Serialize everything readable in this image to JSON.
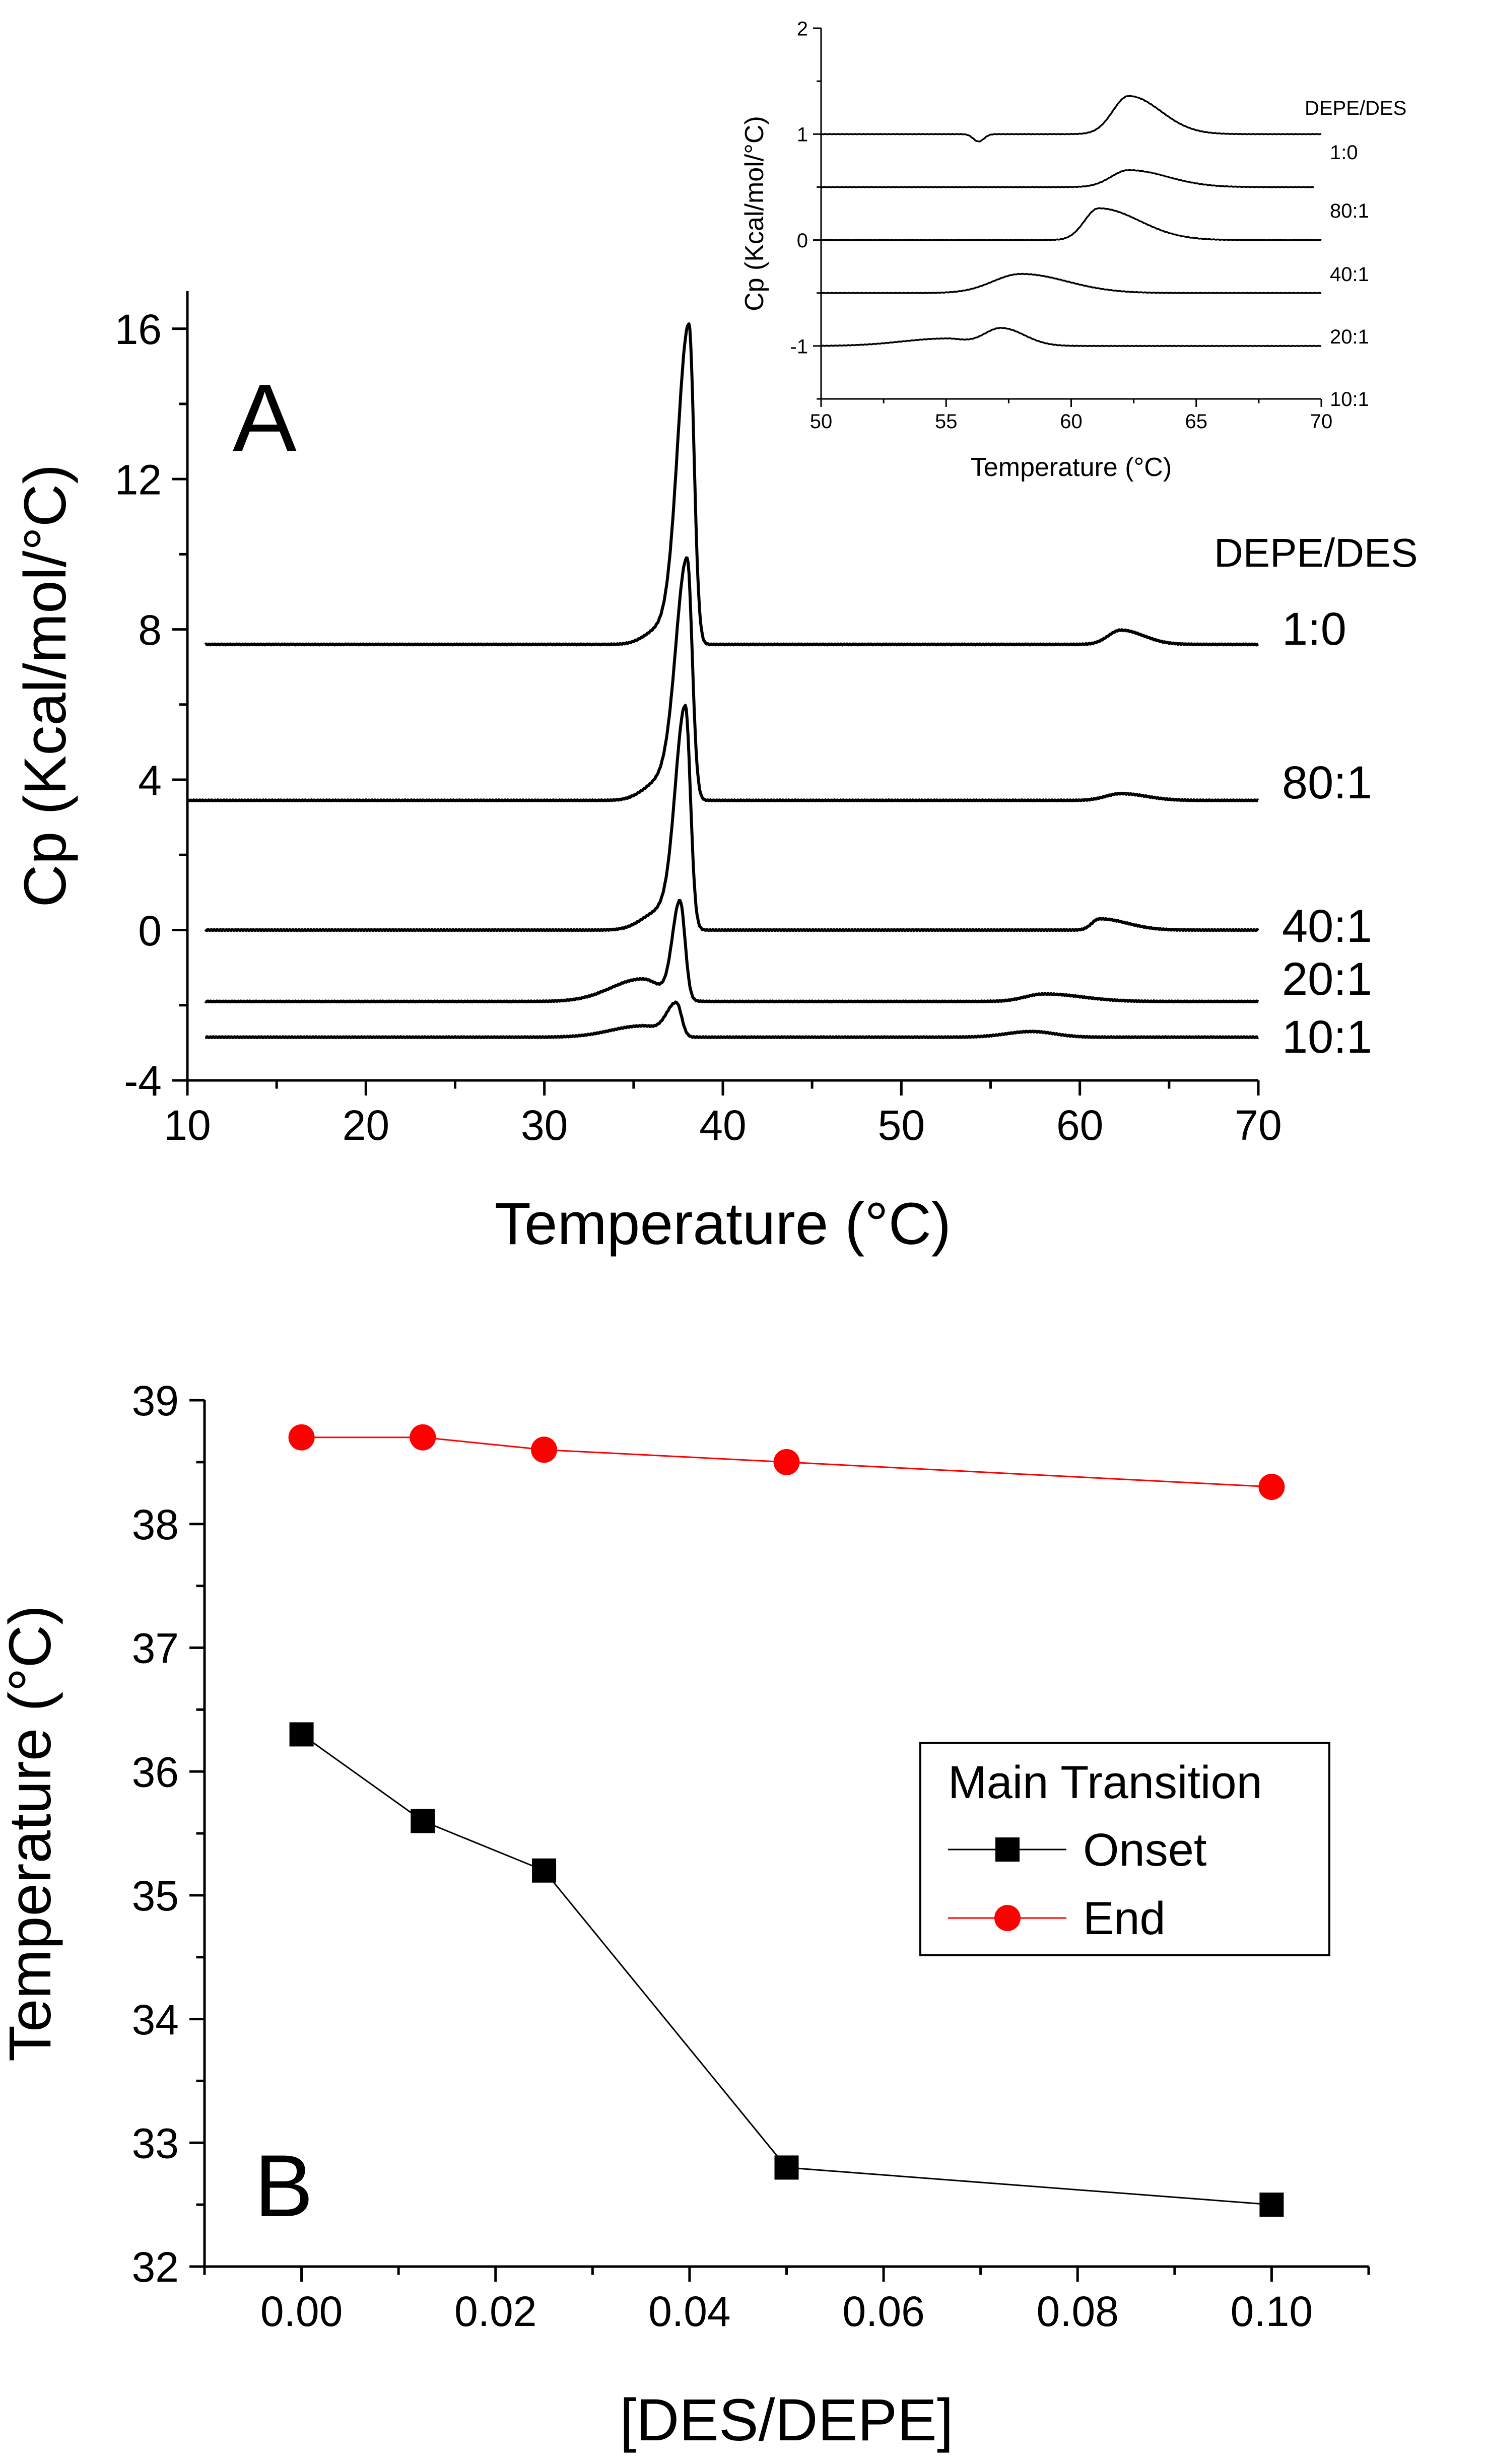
{
  "chart_data": [
    {
      "type": "line",
      "panel_label": "A",
      "xlabel": "Temperature (°C)",
      "ylabel": "Cp (Kcal/mol/°C)",
      "xlim": [
        10,
        70
      ],
      "ylim": [
        -4,
        17
      ],
      "xticks": [
        10,
        20,
        30,
        40,
        50,
        60,
        70
      ],
      "yticks": [
        -4,
        0,
        4,
        8,
        12,
        16
      ],
      "legend_title": "DEPE/DES",
      "series": [
        {
          "name": "1:0",
          "baseline": 7.6,
          "x_range": [
            11,
            70
          ],
          "peaks": [
            {
              "center": 38.1,
              "height": 8.5,
              "wl": 0.9,
              "wr": 0.4
            },
            {
              "center": 36.5,
              "height": 0.4,
              "wl": 1.2,
              "wr": 1.0
            },
            {
              "center": 62.3,
              "height": 0.38,
              "wl": 1.0,
              "wr": 1.8
            }
          ]
        },
        {
          "name": "80:1",
          "baseline": 3.45,
          "x_range": [
            10,
            70
          ],
          "peaks": [
            {
              "center": 38.0,
              "height": 6.4,
              "wl": 0.9,
              "wr": 0.4
            },
            {
              "center": 36.5,
              "height": 0.5,
              "wl": 1.3,
              "wr": 1.0
            },
            {
              "center": 62.3,
              "height": 0.18,
              "wl": 1.2,
              "wr": 2.0
            }
          ]
        },
        {
          "name": "40:1",
          "baseline": 0.0,
          "x_range": [
            11,
            70
          ],
          "peaks": [
            {
              "center": 37.9,
              "height": 5.9,
              "wl": 0.8,
              "wr": 0.4
            },
            {
              "center": 36.5,
              "height": 0.5,
              "wl": 1.4,
              "wr": 1.0
            },
            {
              "center": 61.1,
              "height": 0.3,
              "wl": 0.6,
              "wr": 2.2
            }
          ]
        },
        {
          "name": "20:1",
          "baseline": -1.9,
          "x_range": [
            11,
            70
          ],
          "peaks": [
            {
              "center": 37.6,
              "height": 2.6,
              "wl": 0.6,
              "wr": 0.4
            },
            {
              "center": 35.5,
              "height": 0.6,
              "wl": 2.5,
              "wr": 1.5
            },
            {
              "center": 58.0,
              "height": 0.2,
              "wl": 1.5,
              "wr": 3.0
            }
          ]
        },
        {
          "name": "10:1",
          "baseline": -2.85,
          "x_range": [
            11,
            70
          ],
          "peaks": [
            {
              "center": 37.4,
              "height": 0.9,
              "wl": 0.8,
              "wr": 0.4
            },
            {
              "center": 35.5,
              "height": 0.3,
              "wl": 2.5,
              "wr": 1.2
            },
            {
              "center": 57.3,
              "height": 0.15,
              "wl": 2.0,
              "wr": 1.8
            }
          ]
        }
      ]
    },
    {
      "type": "line",
      "panel_label": "inset",
      "xlabel": "Temperature (°C)",
      "ylabel": "Cp (Kcal/mol/°C)",
      "xlim": [
        50,
        70
      ],
      "ylim": [
        -1.5,
        2
      ],
      "xticks": [
        50,
        55,
        60,
        65,
        70
      ],
      "yticks": [
        -1,
        0,
        1,
        2
      ],
      "legend_title": "DEPE/DES",
      "series": [
        {
          "name": "1:0",
          "baseline": 1.0,
          "x_range": [
            50,
            70
          ],
          "peaks": [
            {
              "center": 62.3,
              "height": 0.36,
              "wl": 0.9,
              "wr": 1.8
            },
            {
              "center": 56.3,
              "height": -0.07,
              "wl": 0.3,
              "wr": 0.3
            }
          ]
        },
        {
          "name": "80:1",
          "baseline": 0.5,
          "x_range": [
            50,
            69.7
          ],
          "peaks": [
            {
              "center": 62.3,
              "height": 0.16,
              "wl": 1.0,
              "wr": 2.2
            }
          ]
        },
        {
          "name": "40:1",
          "baseline": 0.0,
          "x_range": [
            50,
            70
          ],
          "peaks": [
            {
              "center": 61.1,
              "height": 0.3,
              "wl": 0.8,
              "wr": 2.3
            }
          ]
        },
        {
          "name": "20:1",
          "baseline": -0.5,
          "x_range": [
            50,
            70
          ],
          "peaks": [
            {
              "center": 58.0,
              "height": 0.18,
              "wl": 1.6,
              "wr": 2.6
            }
          ]
        },
        {
          "name": "10:1",
          "baseline": -1.0,
          "x_range": [
            50,
            70
          ],
          "peaks": [
            {
              "center": 57.2,
              "height": 0.17,
              "wl": 1.0,
              "wr": 1.3
            },
            {
              "center": 55.0,
              "height": 0.07,
              "wl": 2.5,
              "wr": 1.0
            }
          ]
        }
      ]
    },
    {
      "type": "line",
      "panel_label": "B",
      "xlabel": "[DES/DEPE]",
      "ylabel": "Temperature (°C)",
      "xlim": [
        -0.01,
        0.11
      ],
      "ylim": [
        32,
        39
      ],
      "xticks": [
        "0.00",
        "0.02",
        "0.04",
        "0.06",
        "0.08",
        "0.10"
      ],
      "yticks": [
        32,
        33,
        34,
        35,
        36,
        37,
        38,
        39
      ],
      "legend_title": "Main Transition",
      "legend_position": "center-right",
      "series": [
        {
          "name": "Onset",
          "color": "#000000",
          "marker": "square",
          "x": [
            0,
            0.0125,
            0.025,
            0.05,
            0.1
          ],
          "y": [
            36.3,
            35.6,
            35.2,
            32.8,
            32.5
          ]
        },
        {
          "name": "End",
          "color": "#ff0000",
          "marker": "circle",
          "x": [
            0,
            0.0125,
            0.025,
            0.05,
            0.1
          ],
          "y": [
            38.7,
            38.7,
            38.6,
            38.5,
            38.3
          ]
        }
      ]
    }
  ]
}
